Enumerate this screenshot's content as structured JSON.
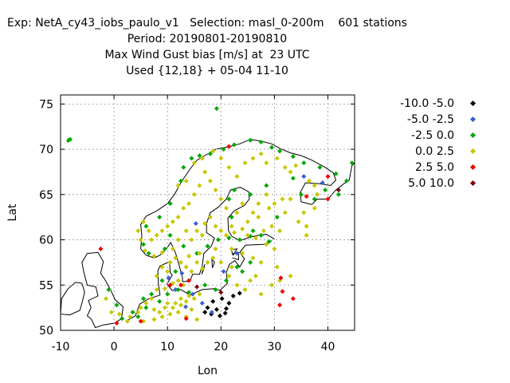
{
  "chart_data": {
    "type": "scatter",
    "title_lines": [
      "Exp: NetA_cy43_iobs_paulo_v1   Selection: masl_0-200m    601 stations",
      "Period: 20190801-20190810",
      "Max Wind Gust bias [m/s] at  23 UTC",
      "Used {12,18} + 05-04 11-10"
    ],
    "xlabel": "Lon",
    "ylabel": "Lat",
    "xlim": [
      -10,
      45
    ],
    "ylim": [
      50,
      76
    ],
    "xticks": [
      -10,
      0,
      10,
      20,
      30,
      40
    ],
    "yticks": [
      50,
      55,
      60,
      65,
      70,
      75
    ],
    "grid": true,
    "legend_position": "right",
    "series": [
      {
        "name": "-10.0 -5.0",
        "color": "#000000",
        "points": [
          [
            17.5,
            52.5
          ],
          [
            18.5,
            53.2
          ],
          [
            19.2,
            52.3
          ],
          [
            20.2,
            53.5
          ],
          [
            20.8,
            51.9
          ],
          [
            21.5,
            53.0
          ],
          [
            18.2,
            51.8
          ],
          [
            22.3,
            53.8
          ],
          [
            19.8,
            51.6
          ],
          [
            21.0,
            52.4
          ],
          [
            23.5,
            54.1
          ],
          [
            17.0,
            52.0
          ]
        ]
      },
      {
        "name": "-5.0 -2.5",
        "color": "#3a5fd6",
        "points": [
          [
            10.2,
            55.8
          ],
          [
            11.5,
            54.5
          ],
          [
            14.7,
            54.0
          ],
          [
            16.5,
            53.0
          ],
          [
            18.3,
            52.0
          ],
          [
            12.7,
            56.3
          ],
          [
            15.3,
            61.8
          ],
          [
            35.5,
            67.0
          ],
          [
            39.0,
            66.3
          ],
          [
            23.0,
            58.5
          ],
          [
            20.5,
            56.5
          ],
          [
            13.4,
            52.6
          ]
        ]
      },
      {
        "name": "-2.5 0.0",
        "color": "#00aa00",
        "points": [
          [
            -8.5,
            71.0
          ],
          [
            19.2,
            74.5
          ],
          [
            13.0,
            68.0
          ],
          [
            14.5,
            69.0
          ],
          [
            16.0,
            69.3
          ],
          [
            18.0,
            69.5
          ],
          [
            20.5,
            70.0
          ],
          [
            22.5,
            70.5
          ],
          [
            25.5,
            71.0
          ],
          [
            27.5,
            70.8
          ],
          [
            29.5,
            70.2
          ],
          [
            31.0,
            69.8
          ],
          [
            33.5,
            69.2
          ],
          [
            35.5,
            68.5
          ],
          [
            38.5,
            68.0
          ],
          [
            41.5,
            67.3
          ],
          [
            43.5,
            66.5
          ],
          [
            44.5,
            68.5
          ],
          [
            12.5,
            66.5
          ],
          [
            10.5,
            64.0
          ],
          [
            8.5,
            62.5
          ],
          [
            6.0,
            61.5
          ],
          [
            5.5,
            59.5
          ],
          [
            6.5,
            58.5
          ],
          [
            9.5,
            59.0
          ],
          [
            10.5,
            60.5
          ],
          [
            13.0,
            59.3
          ],
          [
            15.5,
            58.5
          ],
          [
            17.5,
            59.3
          ],
          [
            19.5,
            60.0
          ],
          [
            21.5,
            60.2
          ],
          [
            23.5,
            60.0
          ],
          [
            25.5,
            60.4
          ],
          [
            27.5,
            60.5
          ],
          [
            29.0,
            59.8
          ],
          [
            22.0,
            62.5
          ],
          [
            21.5,
            64.5
          ],
          [
            22.5,
            65.5
          ],
          [
            25.5,
            65.0
          ],
          [
            28.5,
            66.0
          ],
          [
            33.5,
            66.8
          ],
          [
            35.0,
            65.0
          ],
          [
            37.5,
            64.5
          ],
          [
            39.5,
            65.5
          ],
          [
            42.0,
            65.0
          ],
          [
            30.5,
            62.5
          ],
          [
            26.0,
            61.0
          ],
          [
            11.5,
            56.5
          ],
          [
            9.0,
            55.5
          ],
          [
            7.0,
            54.0
          ],
          [
            5.5,
            53.5
          ],
          [
            3.5,
            52.0
          ],
          [
            4.5,
            51.5
          ],
          [
            6.0,
            52.5
          ],
          [
            8.5,
            53.2
          ],
          [
            10.0,
            54.0
          ],
          [
            12.0,
            54.5
          ],
          [
            14.0,
            54.2
          ],
          [
            17.0,
            55.0
          ],
          [
            19.0,
            54.5
          ],
          [
            21.0,
            55.5
          ],
          [
            24.0,
            56.5
          ],
          [
            25.5,
            57.5
          ],
          [
            23.0,
            57.0
          ],
          [
            -1.0,
            54.5
          ],
          [
            0.5,
            52.8
          ],
          [
            1.5,
            51.3
          ],
          [
            -8.2,
            71.1
          ]
        ]
      },
      {
        "name": "0.0 2.5",
        "color": "#c8c800",
        "points": [
          [
            15.0,
            68.5
          ],
          [
            16.5,
            69.0
          ],
          [
            18.5,
            69.8
          ],
          [
            20.0,
            69.0
          ],
          [
            21.5,
            68.0
          ],
          [
            23.0,
            67.0
          ],
          [
            24.5,
            68.5
          ],
          [
            26.0,
            69.0
          ],
          [
            27.5,
            69.5
          ],
          [
            28.5,
            68.5
          ],
          [
            30.5,
            69.0
          ],
          [
            32.0,
            68.0
          ],
          [
            33.0,
            67.5
          ],
          [
            34.0,
            68.2
          ],
          [
            36.5,
            66.5
          ],
          [
            37.5,
            66.0
          ],
          [
            38.0,
            65.0
          ],
          [
            35.5,
            63.0
          ],
          [
            34.5,
            62.0
          ],
          [
            36.0,
            61.5
          ],
          [
            37.5,
            63.5
          ],
          [
            32.0,
            63.0
          ],
          [
            33.0,
            64.5
          ],
          [
            30.0,
            64.0
          ],
          [
            28.5,
            65.0
          ],
          [
            27.0,
            64.0
          ],
          [
            26.0,
            63.0
          ],
          [
            25.0,
            62.0
          ],
          [
            24.0,
            64.0
          ],
          [
            23.0,
            63.0
          ],
          [
            22.0,
            61.5
          ],
          [
            21.0,
            63.5
          ],
          [
            20.0,
            64.5
          ],
          [
            19.0,
            65.5
          ],
          [
            18.0,
            66.5
          ],
          [
            17.0,
            67.5
          ],
          [
            16.0,
            66.0
          ],
          [
            15.0,
            65.0
          ],
          [
            14.0,
            64.0
          ],
          [
            13.0,
            63.5
          ],
          [
            12.0,
            62.5
          ],
          [
            11.0,
            62.0
          ],
          [
            10.0,
            61.5
          ],
          [
            9.0,
            61.0
          ],
          [
            8.0,
            60.5
          ],
          [
            7.0,
            60.0
          ],
          [
            6.5,
            61.0
          ],
          [
            5.5,
            62.0
          ],
          [
            4.5,
            61.0
          ],
          [
            5.0,
            60.0
          ],
          [
            5.8,
            58.8
          ],
          [
            7.5,
            58.2
          ],
          [
            9.0,
            58.6
          ],
          [
            11.0,
            59.0
          ],
          [
            12.0,
            60.0
          ],
          [
            13.5,
            61.0
          ],
          [
            14.5,
            60.0
          ],
          [
            15.5,
            61.0
          ],
          [
            16.5,
            60.5
          ],
          [
            17.0,
            61.8
          ],
          [
            18.0,
            62.5
          ],
          [
            19.0,
            61.5
          ],
          [
            20.0,
            61.0
          ],
          [
            21.0,
            60.5
          ],
          [
            22.5,
            60.8
          ],
          [
            24.0,
            61.2
          ],
          [
            25.0,
            60.5
          ],
          [
            26.5,
            60.2
          ],
          [
            28.0,
            61.0
          ],
          [
            29.5,
            61.5
          ],
          [
            31.0,
            61.0
          ],
          [
            27.0,
            62.5
          ],
          [
            29.0,
            63.5
          ],
          [
            31.5,
            64.5
          ],
          [
            12.5,
            57.5
          ],
          [
            13.5,
            57.0
          ],
          [
            14.5,
            56.5
          ],
          [
            15.5,
            57.5
          ],
          [
            16.5,
            56.8
          ],
          [
            17.5,
            57.5
          ],
          [
            18.5,
            58.0
          ],
          [
            14.0,
            58.2
          ],
          [
            16.0,
            58.5
          ],
          [
            11.5,
            58.0
          ],
          [
            8.0,
            56.0
          ],
          [
            9.0,
            57.0
          ],
          [
            10.0,
            56.5
          ],
          [
            10.5,
            57.5
          ],
          [
            12.0,
            55.5
          ],
          [
            13.0,
            55.0
          ],
          [
            11.0,
            55.2
          ],
          [
            9.5,
            54.6
          ],
          [
            8.0,
            54.5
          ],
          [
            7.0,
            53.5
          ],
          [
            6.0,
            53.0
          ],
          [
            5.0,
            52.5
          ],
          [
            4.5,
            52.0
          ],
          [
            3.0,
            51.5
          ],
          [
            2.5,
            51.0
          ],
          [
            5.5,
            51.0
          ],
          [
            7.5,
            51.2
          ],
          [
            9.0,
            51.5
          ],
          [
            10.5,
            51.8
          ],
          [
            12.0,
            52.0
          ],
          [
            13.5,
            51.5
          ],
          [
            14.5,
            52.3
          ],
          [
            15.5,
            51.2
          ],
          [
            11.5,
            53.0
          ],
          [
            12.5,
            53.5
          ],
          [
            13.5,
            53.2
          ],
          [
            9.5,
            52.5
          ],
          [
            8.5,
            52.0
          ],
          [
            7.5,
            52.3
          ],
          [
            10.0,
            53.0
          ],
          [
            11.0,
            52.5
          ],
          [
            12.5,
            52.8
          ],
          [
            14.0,
            53.8
          ],
          [
            15.0,
            53.5
          ],
          [
            16.0,
            54.0
          ],
          [
            -1.5,
            53.5
          ],
          [
            -0.5,
            52.0
          ],
          [
            1.0,
            51.8
          ],
          [
            22.0,
            57.0
          ],
          [
            24.0,
            58.5
          ],
          [
            26.0,
            58.0
          ],
          [
            27.5,
            57.5
          ],
          [
            28.5,
            59.5
          ],
          [
            30.0,
            59.0
          ],
          [
            26.5,
            56.0
          ],
          [
            23.0,
            55.0
          ],
          [
            24.5,
            54.5
          ],
          [
            21.5,
            56.0
          ],
          [
            29.5,
            55.0
          ],
          [
            27.5,
            54.0
          ],
          [
            25.5,
            55.5
          ],
          [
            30.5,
            57.0
          ],
          [
            31.0,
            55.5
          ],
          [
            33.0,
            56.0
          ],
          [
            20.0,
            57.5
          ],
          [
            19.0,
            59.0
          ],
          [
            22.0,
            59.0
          ],
          [
            36.0,
            60.5
          ],
          [
            12.0,
            66.0
          ],
          [
            13.5,
            66.5
          ]
        ]
      },
      {
        "name": "2.5 5.0",
        "color": "#ee0000",
        "points": [
          [
            21.5,
            70.3
          ],
          [
            -2.5,
            59.0
          ],
          [
            0.5,
            50.8
          ],
          [
            5.0,
            51.0
          ],
          [
            12.5,
            55.0
          ],
          [
            14.0,
            55.5
          ],
          [
            31.0,
            52.8
          ],
          [
            31.5,
            54.3
          ],
          [
            33.5,
            53.5
          ],
          [
            31.2,
            55.8
          ],
          [
            40.0,
            64.5
          ],
          [
            40.0,
            67.0
          ],
          [
            36.0,
            64.8
          ],
          [
            13.5,
            51.3
          ],
          [
            10.5,
            55.0
          ]
        ]
      },
      {
        "name": "5.0 10.0",
        "color": "#800000",
        "points": [
          [
            42.0,
            65.5
          ],
          [
            20.0,
            54.2
          ],
          [
            15.5,
            54.8
          ]
        ]
      }
    ]
  }
}
